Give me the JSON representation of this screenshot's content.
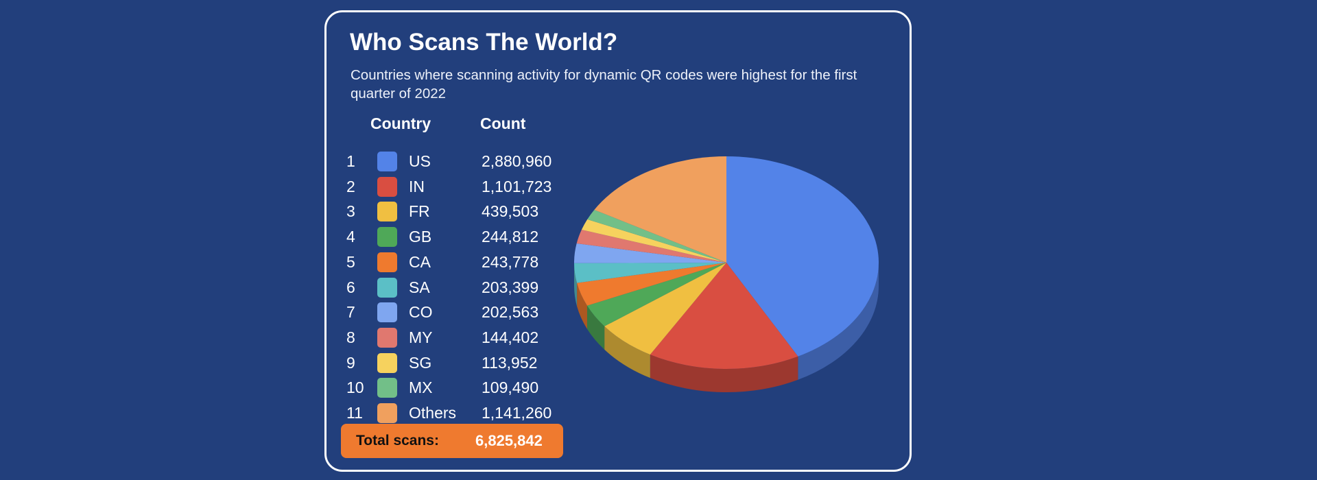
{
  "chart_data": {
    "type": "pie",
    "title": "Who Scans The World?",
    "subtitle": "Countries where scanning activity for dynamic QR codes were highest for the first quarter of 2022",
    "table_headers": {
      "country": "Country",
      "count": "Count"
    },
    "rows": [
      {
        "rank": "1",
        "country": "US",
        "count_label": "2,880,960",
        "value": 2880960,
        "color": "#5383e8"
      },
      {
        "rank": "2",
        "country": "IN",
        "count_label": "1,101,723",
        "value": 1101723,
        "color": "#d94e41"
      },
      {
        "rank": "3",
        "country": "FR",
        "count_label": "439,503",
        "value": 439503,
        "color": "#f0bf41"
      },
      {
        "rank": "4",
        "country": "GB",
        "count_label": "244,812",
        "value": 244812,
        "color": "#4fa858"
      },
      {
        "rank": "5",
        "country": "CA",
        "count_label": "243,778",
        "value": 243778,
        "color": "#ef7a2e"
      },
      {
        "rank": "6",
        "country": "SA",
        "count_label": "203,399",
        "value": 203399,
        "color": "#5bbfc6"
      },
      {
        "rank": "7",
        "country": "CO",
        "count_label": "202,563",
        "value": 202563,
        "color": "#7fa6f0"
      },
      {
        "rank": "8",
        "country": "MY",
        "count_label": "144,402",
        "value": 144402,
        "color": "#e0786f"
      },
      {
        "rank": "9",
        "country": "SG",
        "count_label": "113,952",
        "value": 113952,
        "color": "#f6d25e"
      },
      {
        "rank": "10",
        "country": "MX",
        "count_label": "109,490",
        "value": 109490,
        "color": "#72bf88"
      },
      {
        "rank": "11",
        "country": "Others",
        "count_label": "1,141,260",
        "value": 1141260,
        "color": "#f0a05e"
      }
    ],
    "total": {
      "label": "Total scans:",
      "value": "6,825,842"
    }
  }
}
